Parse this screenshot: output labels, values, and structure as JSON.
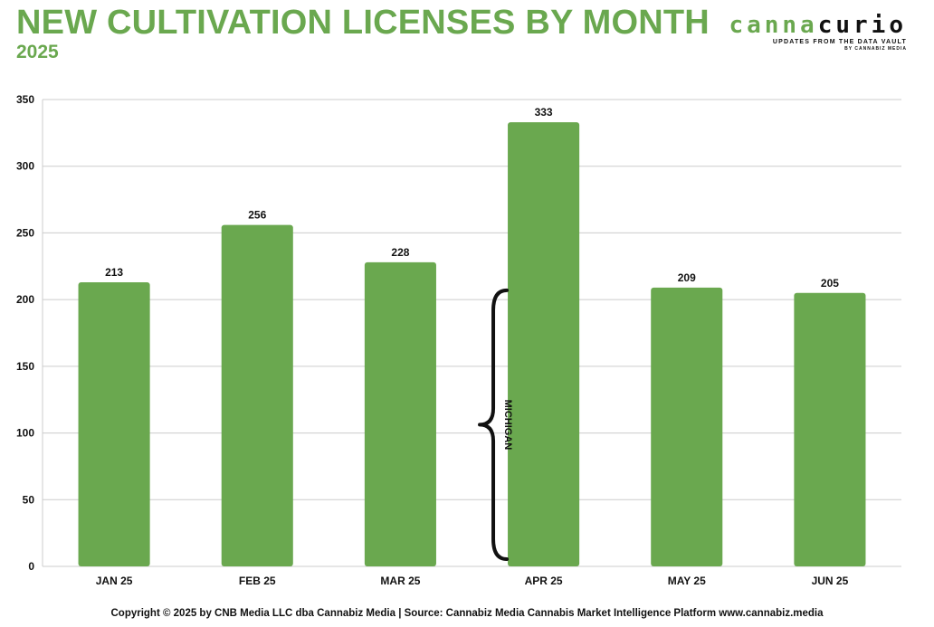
{
  "header": {
    "title": "NEW CULTIVATION LICENSES BY MONTH",
    "subtitle": "2025"
  },
  "logo": {
    "word_part1": "canna",
    "word_part2": "curio",
    "tagline": "UPDATES FROM THE DATA VAULT",
    "byline": "BY CANNABIZ MEDIA"
  },
  "footer": {
    "text": "Copyright © 2025 by CNB Media LLC dba Cannabiz Media | Source: Cannabiz Media Cannabis Market Intelligence Platform www.cannabiz.media"
  },
  "colors": {
    "bar": "#6aa84f",
    "title": "#6aa84f",
    "grid": "#cccccc",
    "text": "#111111"
  },
  "chart_data": {
    "type": "bar",
    "title": "NEW CULTIVATION LICENSES BY MONTH",
    "subtitle": "2025",
    "categories": [
      "JAN 25",
      "FEB 25",
      "MAR 25",
      "APR 25",
      "MAY 25",
      "JUN 25"
    ],
    "values": [
      213,
      256,
      228,
      333,
      209,
      205
    ],
    "data_labels": [
      "213",
      "256",
      "228",
      "333",
      "209",
      "205"
    ],
    "ylim": [
      0,
      350
    ],
    "yticks": [
      0,
      50,
      100,
      150,
      200,
      250,
      300,
      350
    ],
    "grid": true,
    "legend": "none",
    "annotation": {
      "text": "MICHIGAN",
      "category": "APR 25",
      "from_value": 0,
      "to_value": 207
    }
  }
}
